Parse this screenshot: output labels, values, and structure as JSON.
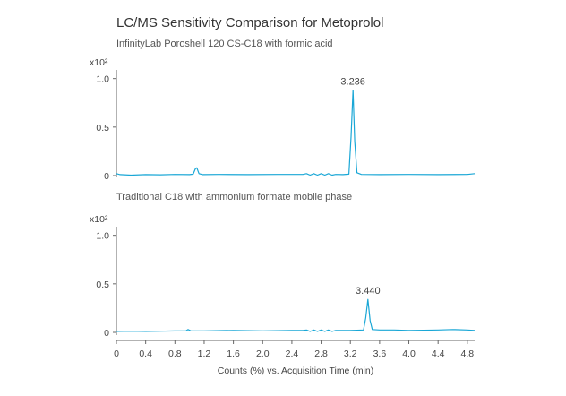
{
  "chart_data": {
    "type": "line",
    "title": "LC/MS Sensitivity Comparison for Metoprolol",
    "xlabel": "Counts (%) vs. Acquisition Time (min)",
    "xlim": [
      0,
      4.9
    ],
    "x_ticks": [
      "0",
      "0.4",
      "0.8",
      "1.2",
      "1.6",
      "2.0",
      "2.4",
      "2.8",
      "3.2",
      "3.6",
      "4.0",
      "4.4",
      "4.8"
    ],
    "trace_color": "#1aa7d6",
    "grid": false,
    "legend": "none",
    "panels": [
      {
        "subtitle": "InfinityLab Poroshell 120 CS-C18 with formic acid",
        "y_multiplier": "x10²",
        "y_ticks": [
          "1.0",
          "0.5",
          "0"
        ],
        "ylim": [
          0,
          1.08
        ],
        "peak_label": "3.236",
        "series": [
          {
            "x": [
              0,
              0.05,
              0.2,
              0.4,
              0.6,
              0.8,
              1.0,
              1.05,
              1.08,
              1.1,
              1.13,
              1.18,
              1.4,
              1.8,
              2.2,
              2.55,
              2.6,
              2.65,
              2.7,
              2.75,
              2.8,
              2.85,
              2.9,
              2.95,
              3.0,
              3.1,
              3.18,
              3.21,
              3.236,
              3.26,
              3.29,
              3.35,
              3.6,
              4.0,
              4.4,
              4.8,
              4.9
            ],
            "y": [
              0.02,
              0.01,
              0.005,
              0.01,
              0.008,
              0.012,
              0.01,
              0.015,
              0.07,
              0.08,
              0.02,
              0.01,
              0.012,
              0.01,
              0.012,
              0.012,
              0.02,
              0.005,
              0.02,
              0.005,
              0.02,
              0.005,
              0.02,
              0.005,
              0.012,
              0.01,
              0.015,
              0.4,
              0.88,
              0.35,
              0.03,
              0.012,
              0.01,
              0.012,
              0.01,
              0.012,
              0.02
            ]
          }
        ]
      },
      {
        "subtitle": "Traditional C18 with ammonium formate mobile phase",
        "y_multiplier": "x10²",
        "y_ticks": [
          "1.0",
          "0.5",
          "0"
        ],
        "ylim": [
          0,
          1.08
        ],
        "peak_label": "3.440",
        "series": [
          {
            "x": [
              0,
              0.2,
              0.4,
              0.6,
              0.8,
              0.95,
              0.98,
              1.02,
              1.2,
              1.6,
              2.0,
              2.4,
              2.55,
              2.6,
              2.65,
              2.7,
              2.75,
              2.8,
              2.85,
              2.9,
              2.95,
              3.0,
              3.2,
              3.38,
              3.41,
              3.44,
              3.47,
              3.5,
              3.6,
              3.8,
              4.0,
              4.4,
              4.6,
              4.8,
              4.9
            ],
            "y": [
              0.01,
              0.012,
              0.01,
              0.012,
              0.015,
              0.015,
              0.03,
              0.015,
              0.015,
              0.02,
              0.015,
              0.02,
              0.02,
              0.025,
              0.01,
              0.025,
              0.01,
              0.025,
              0.01,
              0.025,
              0.01,
              0.02,
              0.02,
              0.025,
              0.15,
              0.34,
              0.12,
              0.03,
              0.025,
              0.025,
              0.02,
              0.025,
              0.03,
              0.025,
              0.02
            ]
          }
        ]
      }
    ]
  }
}
